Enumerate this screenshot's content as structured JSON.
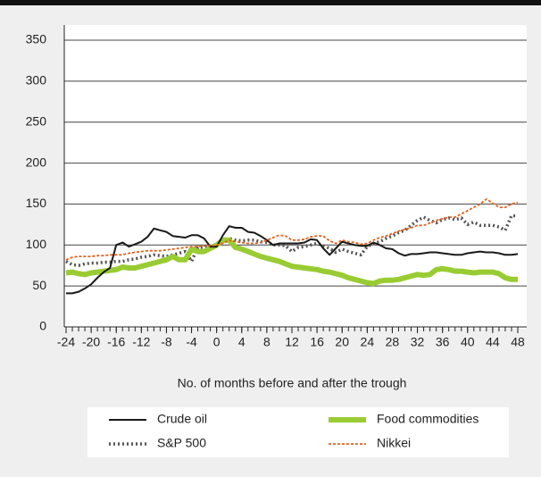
{
  "chart_data": {
    "type": "line",
    "xlabel": "No. of months before and after the trough",
    "x": [
      -24,
      -23,
      -22,
      -21,
      -20,
      -19,
      -18,
      -17,
      -16,
      -15,
      -14,
      -13,
      -12,
      -11,
      -10,
      -9,
      -8,
      -7,
      -6,
      -5,
      -4,
      -3,
      -2,
      -1,
      0,
      1,
      2,
      3,
      4,
      5,
      6,
      7,
      8,
      9,
      10,
      11,
      12,
      13,
      14,
      15,
      16,
      17,
      18,
      19,
      20,
      21,
      22,
      23,
      24,
      25,
      26,
      27,
      28,
      29,
      30,
      31,
      32,
      33,
      34,
      35,
      36,
      37,
      38,
      39,
      40,
      41,
      42,
      43,
      44,
      45,
      46,
      47,
      48
    ],
    "xlim": [
      -24,
      48
    ],
    "xticks": [
      -24,
      -20,
      -16,
      -12,
      -8,
      -4,
      0,
      4,
      8,
      12,
      16,
      20,
      24,
      28,
      32,
      36,
      40,
      44,
      48
    ],
    "ylim": [
      0,
      350
    ],
    "yticks": [
      0,
      50,
      100,
      150,
      200,
      250,
      300,
      350
    ],
    "grid": true,
    "legend": "bottom",
    "series": [
      {
        "name": "Crude oil",
        "color": "#1a1a1a",
        "style": "solid",
        "values": [
          41,
          41,
          43,
          47,
          52,
          60,
          67,
          72,
          100,
          103,
          98,
          101,
          104,
          110,
          120,
          118,
          116,
          111,
          110,
          109,
          112,
          112,
          108,
          98,
          98,
          112,
          123,
          121,
          121,
          116,
          115,
          111,
          106,
          100,
          102,
          102,
          102,
          102,
          103,
          107,
          106,
          96,
          88,
          96,
          104,
          102,
          100,
          99,
          99,
          103,
          100,
          96,
          95,
          90,
          87,
          89,
          89,
          90,
          91,
          91,
          90,
          89,
          88,
          88,
          90,
          91,
          92,
          91,
          91,
          90,
          88,
          88,
          89
        ]
      },
      {
        "name": "Food commodities",
        "color": "#99cc33",
        "style": "thick",
        "values": [
          66,
          67,
          65,
          64,
          66,
          67,
          68,
          69,
          70,
          73,
          72,
          72,
          74,
          76,
          78,
          80,
          82,
          86,
          82,
          82,
          95,
          92,
          92,
          96,
          100,
          106,
          106,
          97,
          95,
          92,
          89,
          86,
          84,
          82,
          80,
          77,
          74,
          73,
          72,
          71,
          70,
          68,
          67,
          65,
          63,
          60,
          58,
          56,
          54,
          53,
          56,
          57,
          57,
          58,
          60,
          62,
          64,
          63,
          64,
          70,
          71,
          70,
          68,
          68,
          67,
          66,
          67,
          67,
          67,
          65,
          60,
          58,
          58
        ]
      },
      {
        "name": "S&P 500",
        "color": "#555555",
        "style": "dotted",
        "values": [
          80,
          76,
          75,
          77,
          78,
          78,
          79,
          79,
          80,
          80,
          82,
          83,
          85,
          86,
          88,
          87,
          86,
          88,
          90,
          92,
          80,
          97,
          97,
          98,
          100,
          104,
          108,
          106,
          105,
          106,
          106,
          104,
          103,
          100,
          100,
          99,
          92,
          97,
          98,
          100,
          102,
          99,
          96,
          91,
          95,
          92,
          90,
          88,
          98,
          102,
          104,
          108,
          111,
          115,
          118,
          124,
          130,
          134,
          130,
          127,
          131,
          133,
          131,
          133,
          125,
          128,
          124,
          124,
          124,
          122,
          118,
          136,
          135
        ]
      },
      {
        "name": "Nikkei",
        "color": "#e8601c",
        "style": "dashed",
        "values": [
          82,
          85,
          86,
          86,
          86,
          87,
          87,
          88,
          88,
          88,
          90,
          91,
          92,
          93,
          93,
          93,
          94,
          95,
          96,
          97,
          98,
          98,
          99,
          99,
          100,
          102,
          106,
          104,
          103,
          102,
          102,
          103,
          106,
          109,
          112,
          111,
          106,
          106,
          107,
          110,
          111,
          111,
          105,
          102,
          106,
          104,
          103,
          101,
          102,
          106,
          109,
          111,
          114,
          117,
          119,
          121,
          124,
          124,
          127,
          130,
          132,
          134,
          134,
          138,
          142,
          146,
          150,
          156,
          151,
          146,
          146,
          150,
          152
        ]
      }
    ]
  }
}
